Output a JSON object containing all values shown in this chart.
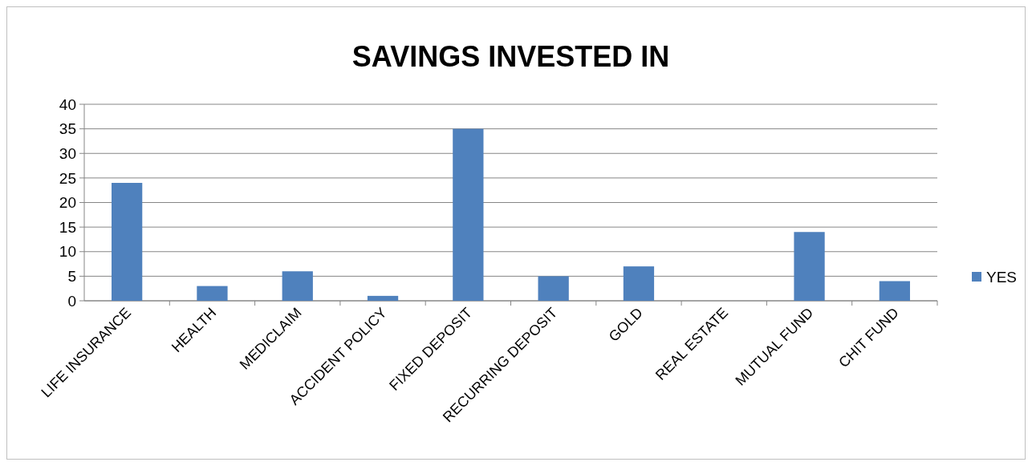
{
  "chart_data": {
    "type": "bar",
    "title": "SAVINGS INVESTED IN",
    "categories": [
      "LIFE INSURANCE",
      "HEALTH",
      "MEDICLAIM",
      "ACCIDENT POLICY",
      "FIXED DEPOSIT",
      "RECURRING DEPOSIT",
      "GOLD",
      "REAL ESTATE",
      "MUTUAL FUND",
      "CHIT FUND"
    ],
    "series": [
      {
        "name": "YES",
        "color": "#4f81bd",
        "values": [
          24,
          3,
          6,
          1,
          35,
          5,
          7,
          0,
          14,
          4
        ]
      }
    ],
    "ylim": [
      0,
      40
    ],
    "yticks": [
      0,
      5,
      10,
      15,
      20,
      25,
      30,
      35,
      40
    ],
    "grid": "y",
    "legend": "right"
  }
}
